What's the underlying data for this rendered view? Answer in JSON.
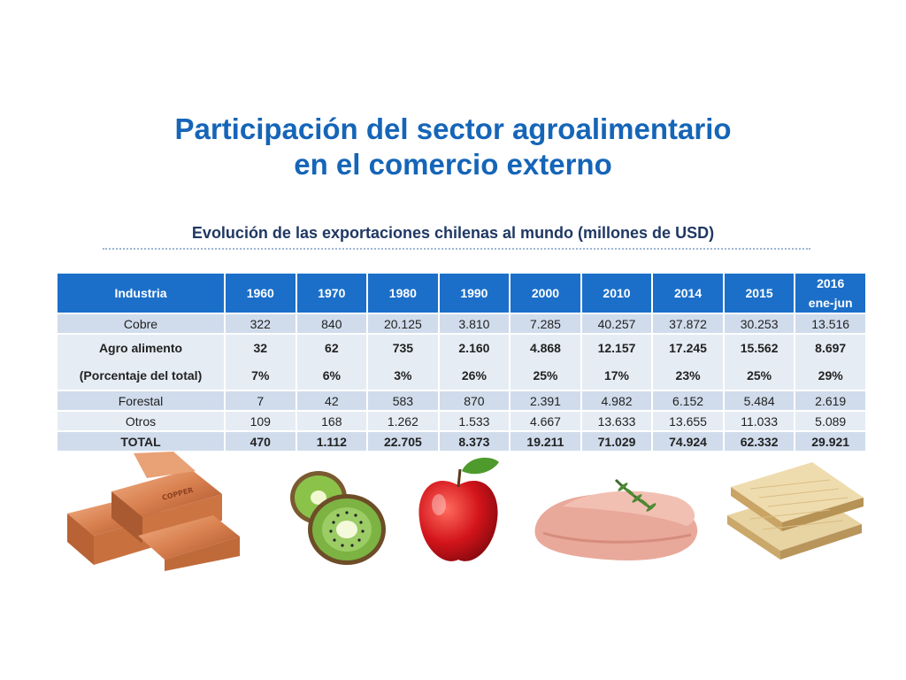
{
  "title_line1": "Participación del sector agroalimentario",
  "title_line2": "en el comercio externo",
  "subtitle": "Evolución de las exportaciones chilenas al mundo (millones de USD)",
  "table": {
    "header": {
      "industria": "Industria",
      "years": [
        "1960",
        "1970",
        "1980",
        "1990",
        "2000",
        "2010",
        "2014",
        "2015"
      ],
      "last_line1": "2016",
      "last_line2": "ene-jun"
    },
    "cobre": {
      "label": "Cobre",
      "values": [
        "322",
        "840",
        "20.125",
        "3.810",
        "7.285",
        "40.257",
        "37.872",
        "30.253",
        "13.516"
      ]
    },
    "agro": {
      "label": "Agro alimento",
      "values": [
        "32",
        "62",
        "735",
        "2.160",
        "4.868",
        "12.157",
        "17.245",
        "15.562",
        "8.697"
      ],
      "pct_label": "(Porcentaje del total)",
      "pct_values": [
        "7%",
        "6%",
        "3%",
        "26%",
        "25%",
        "17%",
        "23%",
        "25%",
        "29%"
      ]
    },
    "forestal": {
      "label": "Forestal",
      "values": [
        "7",
        "42",
        "583",
        "870",
        "2.391",
        "4.982",
        "6.152",
        "5.484",
        "2.619"
      ]
    },
    "otros": {
      "label": "Otros",
      "values": [
        "109",
        "168",
        "1.262",
        "1.533",
        "4.667",
        "13.633",
        "13.655",
        "11.033",
        "5.089"
      ]
    },
    "total": {
      "label": "TOTAL",
      "values": [
        "470",
        "1.112",
        "22.705",
        "8.373",
        "19.211",
        "71.029",
        "74.924",
        "62.332",
        "29.921"
      ]
    }
  },
  "images": {
    "copper_text": "COPPER"
  }
}
